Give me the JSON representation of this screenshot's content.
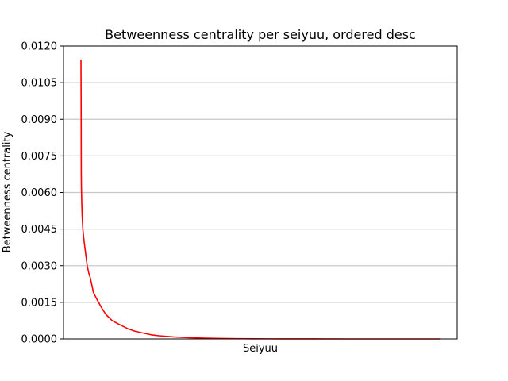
{
  "chart_data": {
    "type": "line",
    "title": "Betweenness centrality per seiyuu, ordered desc",
    "xlabel": "Seiyuu",
    "ylabel": "Betweenness centrality",
    "ylim": [
      0,
      0.012
    ],
    "yticks": [
      "0.0000",
      "0.0015",
      "0.0030",
      "0.0045",
      "0.0060",
      "0.0075",
      "0.0090",
      "0.0105",
      "0.0120"
    ],
    "x_tick_labels": false,
    "grid": "horizontal",
    "series": [
      {
        "color": "#ff0000",
        "x": [
          0,
          1,
          2,
          3,
          5,
          8,
          12,
          20,
          30,
          40,
          50,
          60,
          70,
          80,
          100,
          130,
          160,
          200,
          250,
          300,
          350,
          400,
          450,
          500,
          600,
          700,
          800,
          900,
          1000,
          1100,
          1200,
          1300,
          1400,
          1500,
          1700,
          1900,
          2100,
          2300
        ],
        "values": [
          0.01145,
          0.0098,
          0.0068,
          0.0062,
          0.0056,
          0.005,
          0.0045,
          0.004,
          0.0035,
          0.003,
          0.0027,
          0.0025,
          0.0022,
          0.0019,
          0.00165,
          0.0013,
          0.001,
          0.00075,
          0.00058,
          0.00042,
          0.00031,
          0.00024,
          0.00017,
          0.00013,
          8e-05,
          5e-05,
          3e-05,
          2e-05,
          1.2e-05,
          7e-06,
          4e-06,
          2e-06,
          1e-06,
          5e-07,
          2e-07,
          1e-07,
          5e-08,
          0
        ]
      }
    ]
  }
}
